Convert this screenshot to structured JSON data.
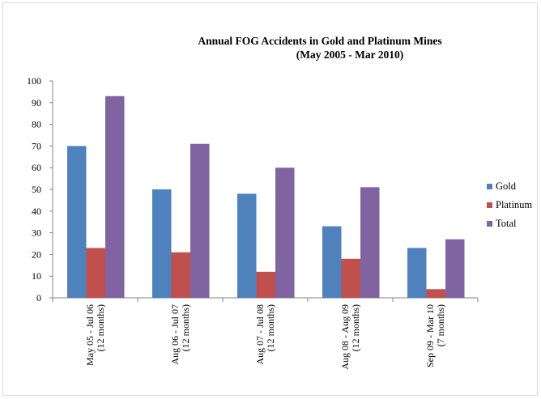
{
  "chart_data": {
    "type": "bar",
    "title": "Annual FOG Accidents in Gold and Platinum Mines",
    "subtitle": "(May 2005 - Mar 2010)",
    "categories": [
      [
        "May 05 - Jul 06",
        "(12 months)"
      ],
      [
        "Aug 06 - Jul 07",
        "(12 months)"
      ],
      [
        "Aug 07 - Jul 08",
        "(12 months)"
      ],
      [
        "Aug 08 - Aug 09",
        "(12 months)"
      ],
      [
        "Sep 09 - Mar 10",
        "(7 months)"
      ]
    ],
    "series": [
      {
        "name": "Gold",
        "color": "#4f81bd",
        "values": [
          70,
          50,
          48,
          33,
          23
        ]
      },
      {
        "name": "Platinum",
        "color": "#c0504d",
        "values": [
          23,
          21,
          12,
          18,
          4
        ]
      },
      {
        "name": "Total",
        "color": "#8064a2",
        "values": [
          93,
          71,
          60,
          51,
          27
        ]
      }
    ],
    "xlabel": "",
    "ylabel": "",
    "ylim": [
      0,
      100
    ],
    "yticks": [
      0,
      10,
      20,
      30,
      40,
      50,
      60,
      70,
      80,
      90,
      100
    ],
    "grid": false,
    "legend": "right"
  }
}
